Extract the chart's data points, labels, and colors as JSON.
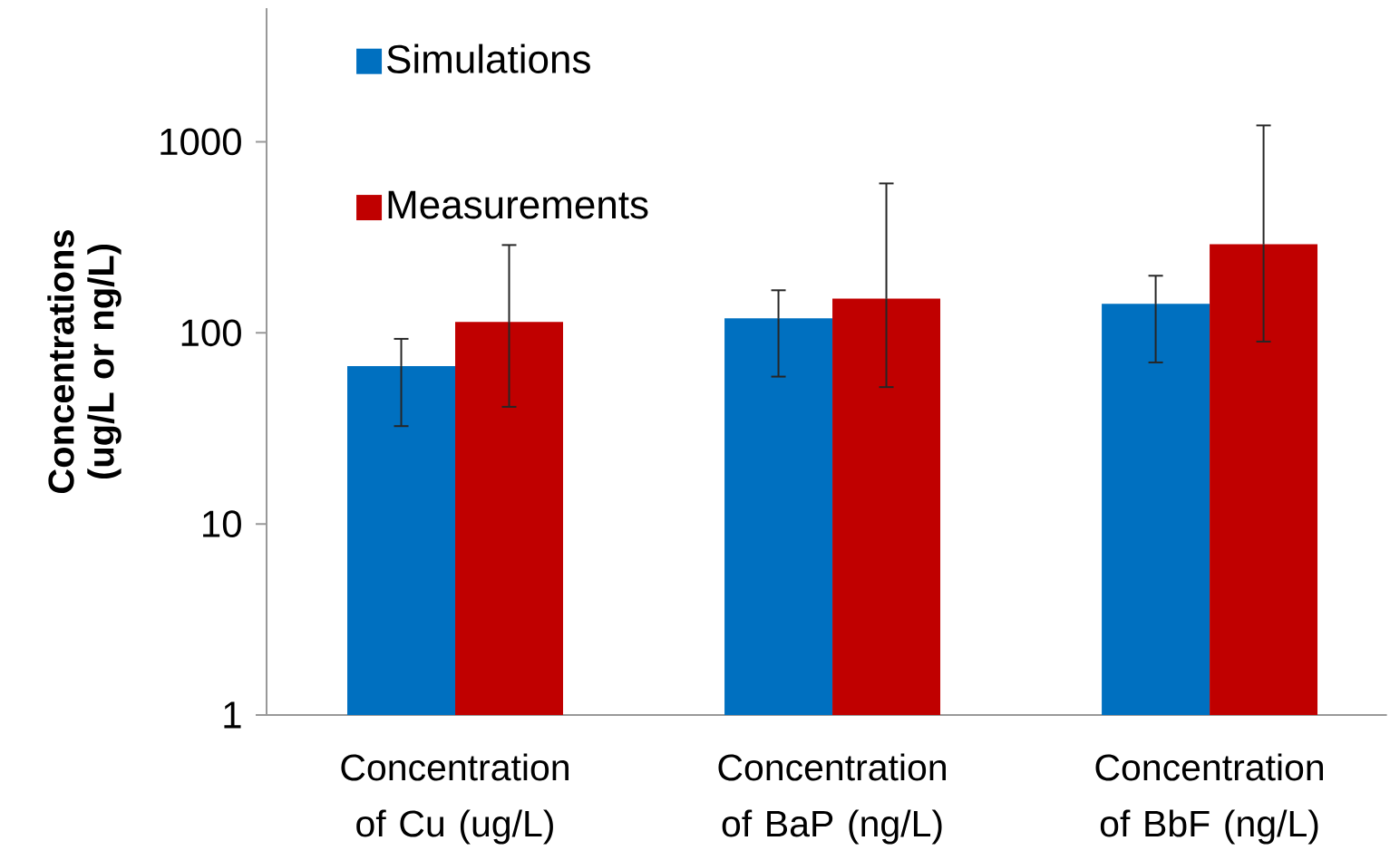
{
  "chart_data": {
    "type": "bar",
    "ylabel": "Concentrations (ug/L or ng/L)",
    "categories": [
      "Concentration of Cu (ug/L)",
      "Concentration of BaP (ng/L)",
      "Concentration of BbF (ng/L)"
    ],
    "series": [
      {
        "name": "Simulations",
        "color": "#0070c0",
        "values": [
          67,
          119,
          142
        ],
        "errors": [
          [
            32.5,
            93
          ],
          [
            59,
            167
          ],
          [
            70,
            199
          ]
        ]
      },
      {
        "name": "Measurements",
        "color": "#c00000",
        "values": [
          114,
          151,
          291
        ],
        "errors": [
          [
            41,
            288
          ],
          [
            52,
            605
          ],
          [
            90,
            1217
          ]
        ]
      }
    ],
    "log": true,
    "ylim": [
      1,
      5000
    ],
    "yticks": [
      1,
      10,
      100,
      1000
    ],
    "legend": "top left"
  }
}
